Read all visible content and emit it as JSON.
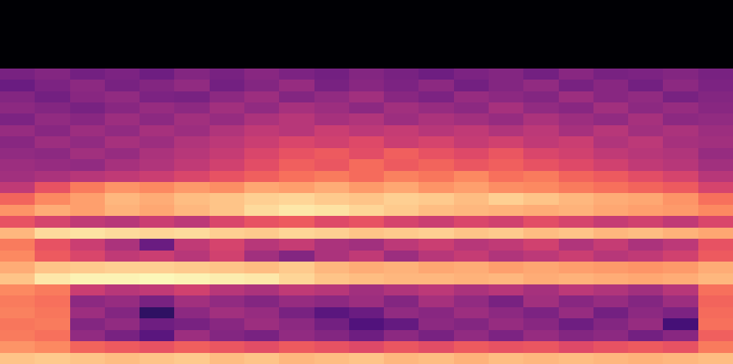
{
  "chart_data": {
    "type": "heatmap",
    "color": "magma",
    "tick_labels": false,
    "zlim": [
      -80,
      0
    ],
    "cells": [
      [
        -80,
        -80,
        -80,
        -80,
        -80,
        -80,
        -80,
        -80,
        -80,
        -80,
        -80,
        -80,
        -80,
        -80,
        -80,
        -80,
        -80,
        -80,
        -80,
        -80,
        -80
      ],
      [
        -80,
        -80,
        -80,
        -80,
        -80,
        -80,
        -80,
        -80,
        -80,
        -80,
        -80,
        -80,
        -80,
        -80,
        -80,
        -80,
        -80,
        -80,
        -80,
        -80,
        -80
      ],
      [
        -80,
        -80,
        -80,
        -80,
        -80,
        -80,
        -80,
        -80,
        -80,
        -80,
        -80,
        -80,
        -80,
        -80,
        -80,
        -80,
        -80,
        -80,
        -80,
        -80,
        -80
      ],
      [
        -80,
        -80,
        -80,
        -80,
        -80,
        -80,
        -80,
        -80,
        -80,
        -80,
        -80,
        -80,
        -80,
        -80,
        -80,
        -80,
        -80,
        -80,
        -80,
        -80,
        -80
      ],
      [
        -80,
        -80,
        -80,
        -80,
        -80,
        -80,
        -80,
        -80,
        -80,
        -80,
        -80,
        -80,
        -80,
        -80,
        -80,
        -80,
        -80,
        -80,
        -80,
        -80,
        -80
      ],
      [
        -80,
        -80,
        -80,
        -80,
        -80,
        -80,
        -80,
        -80,
        -80,
        -80,
        -80,
        -80,
        -80,
        -80,
        -80,
        -80,
        -80,
        -80,
        -80,
        -80,
        -80
      ],
      [
        -52,
        -50,
        -53,
        -51,
        -54,
        -50,
        -52,
        -49,
        -51,
        -53,
        -50,
        -52,
        -54,
        -51,
        -50,
        -53,
        -49,
        -52,
        -51,
        -50,
        -52
      ],
      [
        -55,
        -51,
        -48,
        -52,
        -50,
        -47,
        -53,
        -50,
        -46,
        -52,
        -49,
        -51,
        -48,
        -53,
        -50,
        -47,
        -52,
        -49,
        -53,
        -48,
        -51
      ],
      [
        -50,
        -53,
        -49,
        -47,
        -51,
        -52,
        -48,
        -45,
        -50,
        -47,
        -44,
        -49,
        -51,
        -46,
        -48,
        -50,
        -45,
        -49,
        -47,
        -52,
        -50
      ],
      [
        -48,
        -50,
        -52,
        -49,
        -46,
        -48,
        -44,
        -47,
        -43,
        -45,
        -48,
        -44,
        -46,
        -48,
        -43,
        -47,
        -49,
        -44,
        -48,
        -46,
        -49
      ],
      [
        -51,
        -47,
        -49,
        -45,
        -48,
        -44,
        -46,
        -42,
        -40,
        -43,
        -41,
        -45,
        -42,
        -44,
        -46,
        -42,
        -45,
        -47,
        -43,
        -48,
        -47
      ],
      [
        -46,
        -49,
        -45,
        -47,
        -43,
        -45,
        -41,
        -38,
        -40,
        -36,
        -39,
        -37,
        -40,
        -38,
        -41,
        -39,
        -43,
        -40,
        -44,
        -42,
        -45
      ],
      [
        -49,
        -45,
        -47,
        -43,
        -45,
        -41,
        -39,
        -36,
        -33,
        -35,
        -32,
        -36,
        -34,
        -37,
        -35,
        -38,
        -36,
        -41,
        -39,
        -43,
        -44
      ],
      [
        -47,
        -48,
        -44,
        -46,
        -42,
        -40,
        -37,
        -33,
        -30,
        -28,
        -31,
        -27,
        -30,
        -32,
        -29,
        -33,
        -35,
        -38,
        -40,
        -41,
        -46
      ],
      [
        -45,
        -46,
        -47,
        -43,
        -41,
        -38,
        -35,
        -31,
        -27,
        -29,
        -25,
        -28,
        -26,
        -29,
        -27,
        -30,
        -32,
        -35,
        -38,
        -40,
        -44
      ],
      [
        -44,
        -42,
        -40,
        -38,
        -36,
        -33,
        -30,
        -27,
        -24,
        -22,
        -25,
        -21,
        -23,
        -20,
        -24,
        -22,
        -26,
        -28,
        -31,
        -34,
        -40
      ],
      [
        -38,
        -30,
        -22,
        -18,
        -20,
        -17,
        -19,
        -15,
        -16,
        -14,
        -17,
        -15,
        -18,
        -16,
        -19,
        -20,
        -22,
        -24,
        -26,
        -28,
        -34
      ],
      [
        -26,
        -20,
        -16,
        -12,
        -14,
        -11,
        -10,
        -8,
        -7,
        -9,
        -10,
        -8,
        -9,
        -11,
        -8,
        -10,
        -12,
        -14,
        -15,
        -18,
        -24
      ],
      [
        -18,
        -14,
        -16,
        -13,
        -15,
        -12,
        -10,
        -6,
        -4,
        -5,
        -7,
        -9,
        -11,
        -12,
        -13,
        -14,
        -13,
        -15,
        -16,
        -17,
        -20
      ],
      [
        -30,
        -34,
        -38,
        -40,
        -36,
        -39,
        -33,
        -30,
        -28,
        -32,
        -30,
        -34,
        -36,
        -33,
        -35,
        -31,
        -34,
        -37,
        -35,
        -38,
        -33
      ],
      [
        -12,
        -6,
        -5,
        -6,
        -7,
        -6,
        -8,
        -9,
        -7,
        -8,
        -10,
        -9,
        -8,
        -10,
        -9,
        -11,
        -10,
        -12,
        -11,
        -13,
        -15
      ],
      [
        -22,
        -30,
        -36,
        -42,
        -55,
        -38,
        -34,
        -40,
        -37,
        -42,
        -44,
        -39,
        -36,
        -40,
        -38,
        -35,
        -41,
        -37,
        -42,
        -39,
        -30
      ],
      [
        -20,
        -28,
        -33,
        -38,
        -36,
        -40,
        -35,
        -44,
        -50,
        -42,
        -38,
        -45,
        -40,
        -37,
        -41,
        -39,
        -36,
        -40,
        -38,
        -35,
        -28
      ],
      [
        -14,
        -10,
        -9,
        -8,
        -8,
        -9,
        -10,
        -11,
        -9,
        -12,
        -14,
        -13,
        -15,
        -14,
        -16,
        -15,
        -16,
        -17,
        -18,
        -17,
        -14
      ],
      [
        -10,
        -4,
        -2,
        -2,
        -1,
        -2,
        -3,
        -4,
        -7,
        -10,
        -11,
        -12,
        -12,
        -13,
        -12,
        -14,
        -13,
        -14,
        -15,
        -14,
        -12
      ],
      [
        -20,
        -22,
        -36,
        -40,
        -38,
        -35,
        -40,
        -42,
        -38,
        -40,
        -44,
        -41,
        -39,
        -42,
        -40,
        -43,
        -39,
        -41,
        -44,
        -40,
        -24
      ],
      [
        -22,
        -24,
        -48,
        -46,
        -52,
        -44,
        -47,
        -50,
        -46,
        -48,
        -45,
        -50,
        -43,
        -47,
        -52,
        -44,
        -49,
        -46,
        -50,
        -45,
        -26
      ],
      [
        -21,
        -23,
        -45,
        -50,
        -66,
        -48,
        -44,
        -46,
        -52,
        -58,
        -55,
        -47,
        -49,
        -45,
        -48,
        -51,
        -46,
        -53,
        -48,
        -51,
        -25
      ],
      [
        -23,
        -22,
        -50,
        -47,
        -54,
        -52,
        -49,
        -45,
        -48,
        -53,
        -60,
        -56,
        -48,
        -50,
        -46,
        -49,
        -54,
        -50,
        -46,
        -62,
        -24
      ],
      [
        -22,
        -24,
        -47,
        -52,
        -58,
        -45,
        -50,
        -52,
        -47,
        -50,
        -54,
        -48,
        -52,
        -47,
        -51,
        -46,
        -50,
        -48,
        -53,
        -49,
        -27
      ],
      [
        -18,
        -20,
        -26,
        -28,
        -30,
        -27,
        -29,
        -31,
        -28,
        -30,
        -32,
        -29,
        -31,
        -28,
        -30,
        -29,
        -32,
        -30,
        -28,
        -30,
        -22
      ],
      [
        -10,
        -9,
        -10,
        -11,
        -10,
        -9,
        -11,
        -10,
        -12,
        -11,
        -10,
        -12,
        -11,
        -13,
        -11,
        -12,
        -11,
        -12,
        -13,
        -12,
        -11
      ]
    ]
  }
}
